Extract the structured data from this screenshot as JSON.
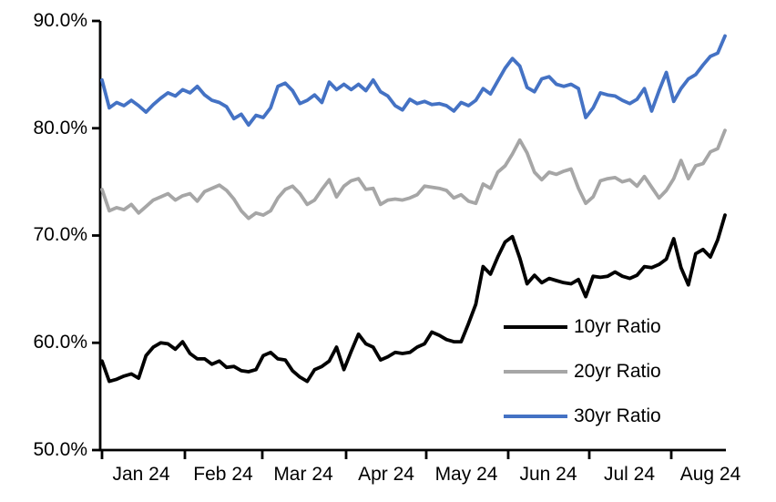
{
  "chart_data": {
    "type": "line",
    "title": "",
    "xlabel": "",
    "ylabel": "",
    "y_axis": {
      "min": 50,
      "max": 90,
      "tick_values": [
        90,
        80,
        70,
        60,
        50
      ],
      "tick_labels": [
        "90.0%",
        "80.0%",
        "70.0%",
        "60.0%",
        "50.0%"
      ],
      "format": "percent"
    },
    "x_axis": {
      "tick_labels": [
        "Jan 24",
        "Feb 24",
        "Mar 24",
        "Apr 24",
        "May 24",
        "Jun 24",
        "Jul 24",
        "Aug 24"
      ]
    },
    "grid": "off",
    "legend_position": "inside-lower-right",
    "series": [
      {
        "name": "10yr Ratio",
        "color": "#000000",
        "values": [
          58.3,
          56.4,
          56.6,
          56.9,
          57.1,
          56.7,
          58.8,
          59.6,
          60.0,
          59.9,
          59.4,
          60.1,
          59.0,
          58.5,
          58.5,
          58.0,
          58.3,
          57.7,
          57.8,
          57.4,
          57.3,
          57.5,
          58.8,
          59.1,
          58.5,
          58.4,
          57.4,
          56.8,
          56.4,
          57.5,
          57.8,
          58.3,
          59.6,
          57.5,
          59.2,
          60.8,
          59.9,
          59.6,
          58.4,
          58.7,
          59.1,
          59.0,
          59.1,
          59.6,
          59.9,
          61.0,
          60.7,
          60.3,
          60.1,
          60.1,
          61.8,
          63.6,
          67.1,
          66.4,
          68.0,
          69.4,
          69.9,
          67.9,
          65.5,
          66.3,
          65.6,
          66.0,
          65.8,
          65.6,
          65.5,
          65.9,
          64.3,
          66.2,
          66.1,
          66.2,
          66.6,
          66.2,
          66.0,
          66.3,
          67.1,
          67.0,
          67.3,
          67.8,
          69.7,
          67.0,
          65.4,
          68.3,
          68.7,
          68.0,
          69.6,
          71.9
        ]
      },
      {
        "name": "20yr Ratio",
        "color": "#A6A6A6",
        "values": [
          74.3,
          72.3,
          72.6,
          72.4,
          72.9,
          72.1,
          72.7,
          73.3,
          73.6,
          73.9,
          73.3,
          73.7,
          73.9,
          73.2,
          74.1,
          74.4,
          74.7,
          74.2,
          73.4,
          72.3,
          71.6,
          72.1,
          71.9,
          72.3,
          73.5,
          74.3,
          74.6,
          73.9,
          72.9,
          73.3,
          74.3,
          75.2,
          73.6,
          74.6,
          75.1,
          75.3,
          74.3,
          74.4,
          72.9,
          73.3,
          73.4,
          73.3,
          73.5,
          73.8,
          74.6,
          74.5,
          74.4,
          74.2,
          73.5,
          73.8,
          73.2,
          73.0,
          74.8,
          74.4,
          75.9,
          76.5,
          77.6,
          78.9,
          77.7,
          75.9,
          75.2,
          75.9,
          75.7,
          76.0,
          76.2,
          74.4,
          73.0,
          73.6,
          75.1,
          75.3,
          75.4,
          75.0,
          75.2,
          74.6,
          75.5,
          74.5,
          73.5,
          74.2,
          75.3,
          77.0,
          75.3,
          76.5,
          76.7,
          77.8,
          78.1,
          79.8
        ]
      },
      {
        "name": "30yr Ratio",
        "color": "#4472C4",
        "values": [
          84.5,
          81.9,
          82.4,
          82.1,
          82.6,
          82.1,
          81.5,
          82.2,
          82.8,
          83.3,
          83.0,
          83.6,
          83.3,
          83.9,
          83.1,
          82.6,
          82.4,
          82.0,
          80.9,
          81.3,
          80.3,
          81.2,
          81.0,
          81.9,
          83.9,
          84.2,
          83.5,
          82.3,
          82.6,
          83.1,
          82.4,
          84.3,
          83.6,
          84.1,
          83.6,
          84.1,
          83.5,
          84.5,
          83.4,
          83.0,
          82.1,
          81.7,
          82.7,
          82.3,
          82.5,
          82.2,
          82.3,
          82.1,
          81.6,
          82.4,
          82.1,
          82.6,
          83.7,
          83.2,
          84.4,
          85.6,
          86.5,
          85.8,
          83.8,
          83.4,
          84.6,
          84.8,
          84.1,
          83.9,
          84.1,
          83.7,
          81.0,
          81.9,
          83.3,
          83.1,
          83.0,
          82.6,
          82.3,
          82.7,
          83.7,
          81.6,
          83.5,
          85.2,
          82.5,
          83.7,
          84.6,
          85.0,
          85.9,
          86.7,
          87.0,
          88.6
        ]
      }
    ]
  }
}
